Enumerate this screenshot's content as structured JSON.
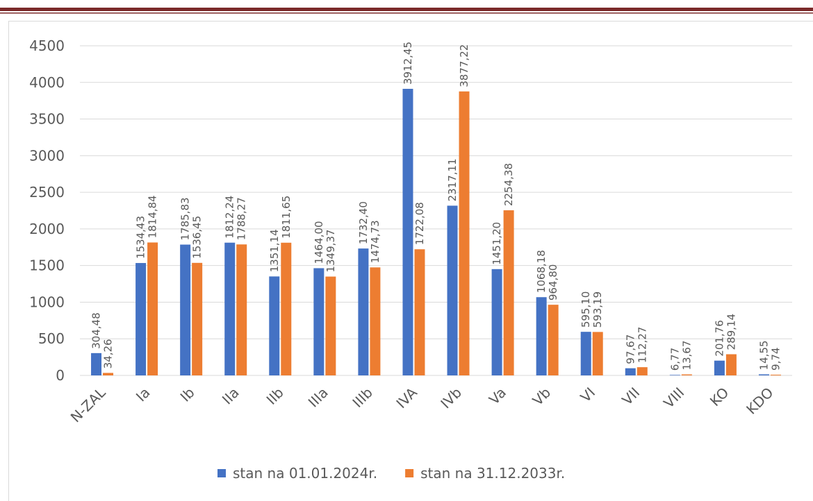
{
  "chart_data": {
    "type": "bar",
    "categories": [
      "N-ZAL",
      "Ia",
      "Ib",
      "IIa",
      "IIb",
      "IIIa",
      "IIIb",
      "IVA",
      "IVb",
      "Va",
      "Vb",
      "VI",
      "VII",
      "VIII",
      "KO",
      "KDO"
    ],
    "series": [
      {
        "name": "stan na 01.01.2024r.",
        "color": "#4472c4",
        "values": [
          304.48,
          1534.43,
          1785.83,
          1812.24,
          1351.14,
          1464.0,
          1732.4,
          3912.45,
          2317.11,
          1451.2,
          1068.18,
          595.1,
          97.67,
          6.77,
          201.76,
          14.55
        ],
        "value_labels": [
          "304,48",
          "1534,43",
          "1785,83",
          "1812,24",
          "1351,14",
          "1464,00",
          "1732,40",
          "3912,45",
          "2317,11",
          "1451,20",
          "1068,18",
          "595,10",
          "97,67",
          "6,77",
          "201,76",
          "14,55"
        ]
      },
      {
        "name": "stan na 31.12.2033r.",
        "color": "#ed7d31",
        "values": [
          34.26,
          1814.84,
          1536.45,
          1788.27,
          1811.65,
          1349.37,
          1474.73,
          1722.08,
          3877.22,
          2254.38,
          964.8,
          593.19,
          112.27,
          13.67,
          289.14,
          9.74
        ],
        "value_labels": [
          "34,26",
          "1814,84",
          "1536,45",
          "1788,27",
          "1811,65",
          "1349,37",
          "1474,73",
          "1722,08",
          "3877,22",
          "2254,38",
          "964,80",
          "593,19",
          "112,27",
          "13,67",
          "289,14",
          "9,74"
        ]
      }
    ],
    "ylim": [
      0,
      4500
    ],
    "yticks": [
      0,
      500,
      1000,
      1500,
      2000,
      2500,
      3000,
      3500,
      4000,
      4500
    ],
    "grid": true,
    "legend": "bottom"
  }
}
